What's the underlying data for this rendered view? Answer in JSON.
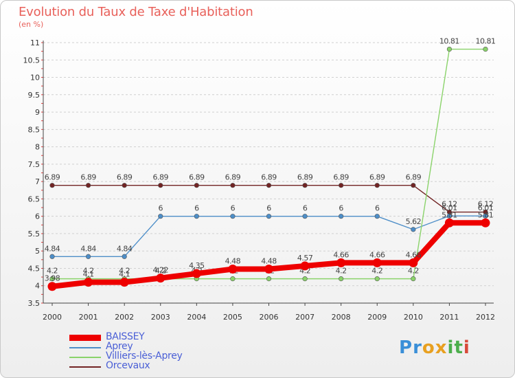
{
  "chart_data": {
    "type": "line",
    "title": "Evolution du Taux de Taxe d'Habitation",
    "subtitle": "(en %)",
    "xlabel": "",
    "ylabel": "",
    "ylim": [
      3.5,
      11
    ],
    "yticks": [
      "3.5",
      "4",
      "4.5",
      "5",
      "5.5",
      "6",
      "6.5",
      "7",
      "7.5",
      "8",
      "8.5",
      "9",
      "9.5",
      "10",
      "10.5",
      "11"
    ],
    "x": [
      "2000",
      "2001",
      "2002",
      "2003",
      "2004",
      "2005",
      "2006",
      "2007",
      "2008",
      "2009",
      "2010",
      "2011",
      "2012"
    ],
    "series": [
      {
        "name": "Orcevaux",
        "color": "#722424",
        "values": [
          6.89,
          6.89,
          6.89,
          6.89,
          6.89,
          6.89,
          6.89,
          6.89,
          6.89,
          6.89,
          6.89,
          6.12,
          6.12
        ],
        "labels": [
          "6.89",
          "6.89",
          "6.89",
          "6.89",
          "6.89",
          "6.89",
          "6.89",
          "6.89",
          "6.89",
          "6.89",
          "6.89",
          "6.12",
          "6.12"
        ]
      },
      {
        "name": "Aprey",
        "color": "#4d8ec8",
        "values": [
          4.84,
          4.84,
          4.84,
          6,
          6,
          6,
          6,
          6,
          6,
          6,
          5.62,
          6.01,
          6.01
        ],
        "labels": [
          "4.84",
          "4.84",
          "4.84",
          "6",
          "6",
          "6",
          "6",
          "6",
          "6",
          "6",
          "5.62",
          "6.01",
          "6.01"
        ]
      },
      {
        "name": "Villiers-lès-Aprey",
        "color": "#8ad36a",
        "values": [
          4.2,
          4.2,
          4.2,
          4.2,
          4.2,
          4.2,
          4.2,
          4.2,
          4.2,
          4.2,
          4.2,
          10.81,
          10.81
        ],
        "labels": [
          "4.2",
          "4.2",
          "4.2",
          "4.2",
          "4.2",
          "4.2",
          "4.2",
          "4.2",
          "4.2",
          "4.2",
          "4.2",
          "10.81",
          "10.81"
        ]
      },
      {
        "name": "BAISSEY",
        "color": "#ee0000",
        "values": [
          3.98,
          4.1,
          4.1,
          4.22,
          4.35,
          4.48,
          4.48,
          4.57,
          4.66,
          4.66,
          4.66,
          5.81,
          5.81
        ],
        "labels": [
          "3.98",
          "4.1",
          "4.1",
          "4.22",
          "4.35",
          "4.48",
          "4.48",
          "4.57",
          "4.66",
          "4.66",
          "4.66",
          "5.81",
          "5.81"
        ]
      }
    ]
  },
  "legend": [
    {
      "label": "BAISSEY",
      "color": "#ee0000",
      "thick": true
    },
    {
      "label": "Aprey",
      "color": "#4d8ec8",
      "thick": false
    },
    {
      "label": "Villiers-lès-Aprey",
      "color": "#8ad36a",
      "thick": false
    },
    {
      "label": "Orcevaux",
      "color": "#722424",
      "thick": false
    }
  ],
  "logo": {
    "text": "Proxiti",
    "letters": [
      "P",
      "r",
      "o",
      "x",
      "i",
      "t",
      "i"
    ],
    "colors": [
      "#3a8fd8",
      "#3a8fd8",
      "#e8a020",
      "#e8a020",
      "#4cae4c",
      "#4cae4c",
      "#d84a3a"
    ]
  }
}
